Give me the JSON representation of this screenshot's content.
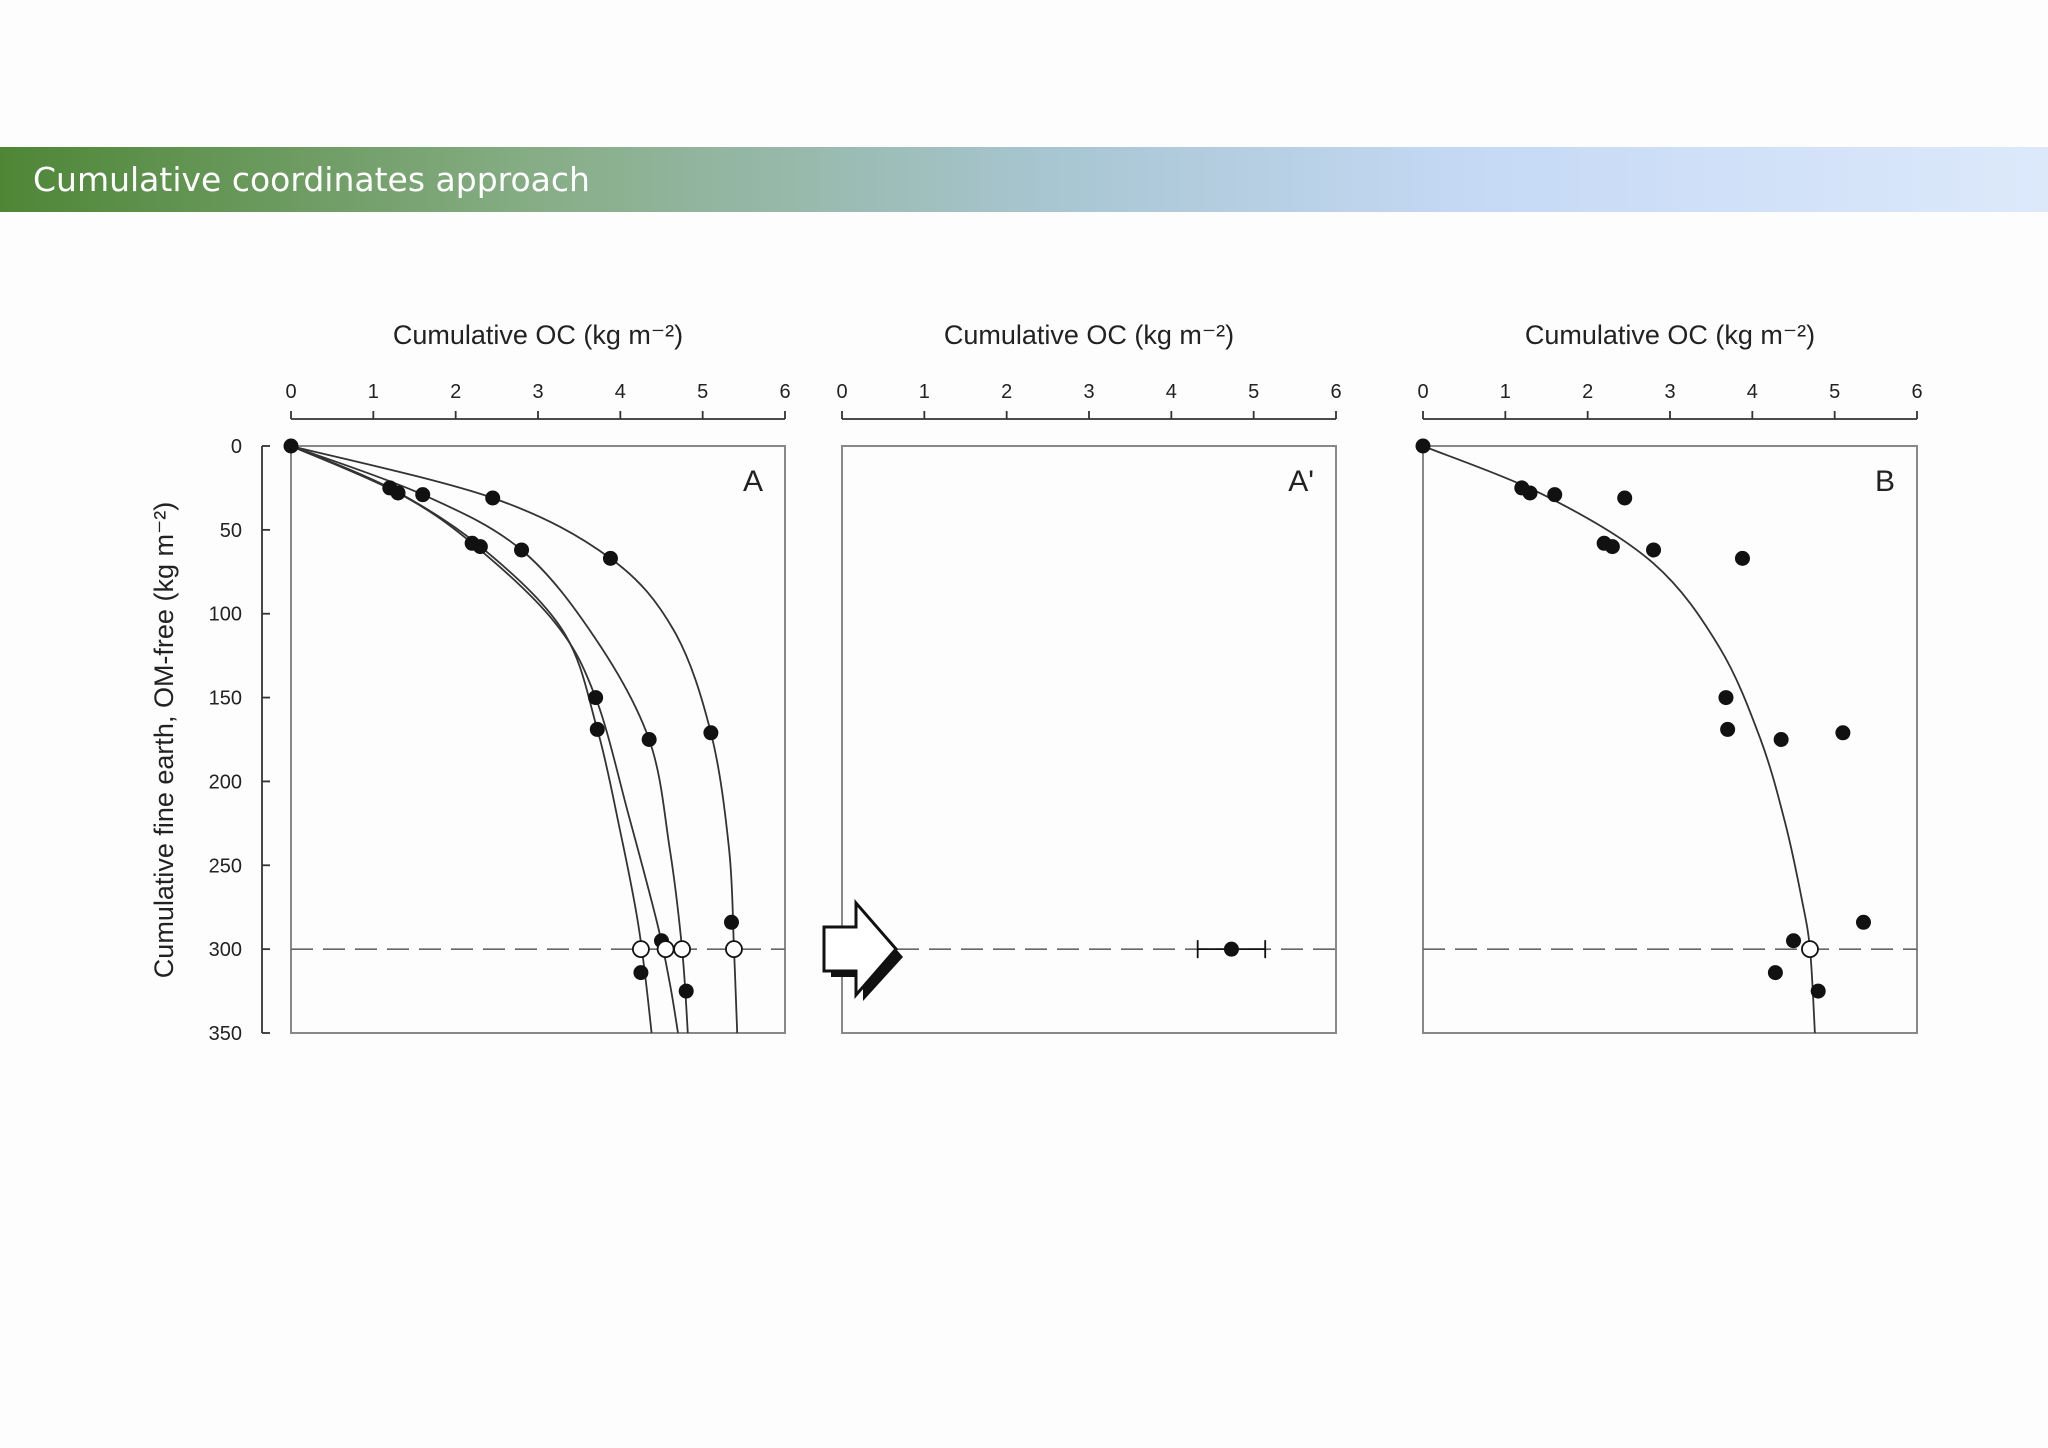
{
  "slide": {
    "title": "Cumulative coordinates approach"
  },
  "colors": {
    "banner_start": "#4e8636",
    "banner_end": "#dde9fb",
    "marker": "#111111",
    "axis": "#888888"
  },
  "chart_data": [
    {
      "panel": "A",
      "type": "scatter",
      "xlabel": "Cumulative OC (kg m⁻²)",
      "ylabel": "Cumulative fine earth, OM-free (kg m⁻²)",
      "xlim": [
        0,
        6
      ],
      "ylim": [
        0,
        350
      ],
      "y_inverted": true,
      "x_axis_position": "top",
      "xticks": [
        "0",
        "1",
        "2",
        "3",
        "4",
        "5",
        "6"
      ],
      "yticks": [
        "0",
        "50",
        "100",
        "150",
        "200",
        "250",
        "300",
        "350"
      ],
      "reference_line_y": 300,
      "series": [
        {
          "marker": "filled-circle",
          "points": [
            [
              0,
              0
            ],
            [
              1.2,
              25
            ],
            [
              1.3,
              28
            ],
            [
              1.6,
              29
            ],
            [
              2.2,
              58
            ],
            [
              2.3,
              60
            ],
            [
              2.8,
              62
            ],
            [
              2.45,
              31
            ],
            [
              3.7,
              150
            ],
            [
              3.72,
              169
            ],
            [
              3.88,
              67
            ],
            [
              4.35,
              175
            ],
            [
              5.1,
              171
            ],
            [
              5.35,
              284
            ],
            [
              4.5,
              295
            ],
            [
              4.25,
              314
            ],
            [
              4.8,
              325
            ]
          ]
        },
        {
          "marker": "open-circle",
          "points": [
            [
              4.25,
              300
            ],
            [
              4.55,
              300
            ],
            [
              4.75,
              300
            ],
            [
              5.38,
              300
            ]
          ]
        },
        {
          "marker": "line",
          "curves": [
            [
              [
                0,
                0
              ],
              [
                1.2,
                25
              ],
              [
                2.3,
                60
              ],
              [
                3.3,
                110
              ],
              [
                3.72,
                169
              ],
              [
                4.0,
                230
              ],
              [
                4.2,
                280
              ],
              [
                4.3,
                315
              ],
              [
                4.38,
                350
              ]
            ],
            [
              [
                0,
                0
              ],
              [
                1.3,
                28
              ],
              [
                2.2,
                58
              ],
              [
                3.2,
                105
              ],
              [
                3.7,
                150
              ],
              [
                4.1,
                220
              ],
              [
                4.45,
                285
              ],
              [
                4.6,
                320
              ],
              [
                4.7,
                350
              ]
            ],
            [
              [
                0,
                0
              ],
              [
                1.6,
                29
              ],
              [
                2.8,
                62
              ],
              [
                3.7,
                115
              ],
              [
                4.35,
                175
              ],
              [
                4.6,
                240
              ],
              [
                4.75,
                300
              ],
              [
                4.82,
                350
              ]
            ],
            [
              [
                0,
                0
              ],
              [
                2.45,
                31
              ],
              [
                3.88,
                67
              ],
              [
                4.65,
                110
              ],
              [
                5.1,
                171
              ],
              [
                5.32,
                240
              ],
              [
                5.38,
                300
              ],
              [
                5.42,
                350
              ]
            ]
          ]
        }
      ]
    },
    {
      "panel": "A'",
      "type": "scatter",
      "xlabel": "Cumulative OC (kg m⁻²)",
      "xlim": [
        0,
        6
      ],
      "ylim": [
        0,
        350
      ],
      "y_inverted": true,
      "x_axis_position": "top",
      "xticks": [
        "0",
        "1",
        "2",
        "3",
        "4",
        "5",
        "6"
      ],
      "reference_line_y": 300,
      "series": [
        {
          "marker": "filled-circle-errorbar",
          "points": [
            [
              4.73,
              300
            ]
          ],
          "x_error": [
            [
              4.32,
              5.14
            ]
          ]
        }
      ]
    },
    {
      "panel": "B",
      "type": "scatter",
      "xlabel": "Cumulative OC (kg m⁻²)",
      "xlim": [
        0,
        6
      ],
      "ylim": [
        0,
        350
      ],
      "y_inverted": true,
      "x_axis_position": "top",
      "xticks": [
        "0",
        "1",
        "2",
        "3",
        "4",
        "5",
        "6"
      ],
      "reference_line_y": 300,
      "series": [
        {
          "marker": "filled-circle",
          "points": [
            [
              0,
              0
            ],
            [
              1.2,
              25
            ],
            [
              1.3,
              28
            ],
            [
              1.6,
              29
            ],
            [
              2.45,
              31
            ],
            [
              2.2,
              58
            ],
            [
              2.3,
              60
            ],
            [
              2.8,
              62
            ],
            [
              3.88,
              67
            ],
            [
              3.68,
              150
            ],
            [
              3.7,
              169
            ],
            [
              4.35,
              175
            ],
            [
              5.1,
              171
            ],
            [
              5.35,
              284
            ],
            [
              4.5,
              295
            ],
            [
              4.28,
              314
            ],
            [
              4.8,
              325
            ]
          ]
        },
        {
          "marker": "open-circle",
          "points": [
            [
              4.7,
              300
            ]
          ]
        },
        {
          "marker": "line",
          "curves": [
            [
              [
                0,
                0
              ],
              [
                1.5,
                30
              ],
              [
                2.8,
                70
              ],
              [
                3.6,
                120
              ],
              [
                4.1,
                175
              ],
              [
                4.4,
                225
              ],
              [
                4.6,
                270
              ],
              [
                4.7,
                300
              ],
              [
                4.76,
                350
              ]
            ]
          ]
        }
      ]
    }
  ]
}
